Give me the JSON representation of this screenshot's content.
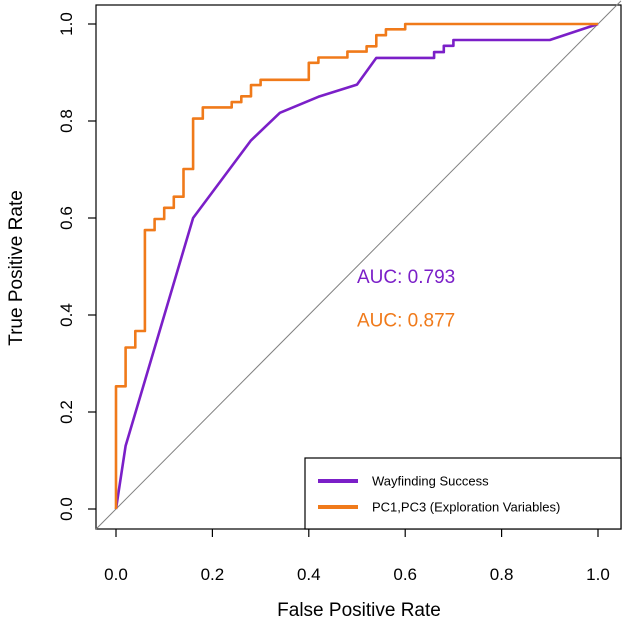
{
  "chart_data": {
    "type": "line",
    "title": "",
    "xlabel": "False Positive Rate",
    "ylabel": "True Positive Rate",
    "xlim": [
      0,
      1
    ],
    "ylim": [
      0,
      1
    ],
    "xticks": [
      "0.0",
      "0.2",
      "0.4",
      "0.6",
      "0.8",
      "1.0"
    ],
    "yticks": [
      "0.0",
      "0.2",
      "0.4",
      "0.6",
      "0.8",
      "1.0"
    ],
    "diagonal": {
      "color": "#808080"
    },
    "series": [
      {
        "name": "Wayfinding Success",
        "color": "#7B1FC8",
        "auc_label": "AUC: 0.793",
        "points": [
          [
            0.0,
            0.0
          ],
          [
            0.02,
            0.13
          ],
          [
            0.16,
            0.6
          ],
          [
            0.28,
            0.76
          ],
          [
            0.34,
            0.817
          ],
          [
            0.42,
            0.85
          ],
          [
            0.5,
            0.875
          ],
          [
            0.54,
            0.93
          ],
          [
            0.66,
            0.93
          ],
          [
            0.66,
            0.942
          ],
          [
            0.68,
            0.942
          ],
          [
            0.68,
            0.955
          ],
          [
            0.7,
            0.955
          ],
          [
            0.7,
            0.967
          ],
          [
            0.9,
            0.967
          ],
          [
            1.0,
            1.0
          ]
        ]
      },
      {
        "name": "PC1,PC3 (Exploration Variables)",
        "color": "#F07A1A",
        "auc_label": "AUC: 0.877",
        "points": [
          [
            0.0,
            0.0
          ],
          [
            0.0,
            0.253
          ],
          [
            0.02,
            0.253
          ],
          [
            0.02,
            0.333
          ],
          [
            0.04,
            0.333
          ],
          [
            0.04,
            0.367
          ],
          [
            0.06,
            0.367
          ],
          [
            0.06,
            0.575
          ],
          [
            0.08,
            0.575
          ],
          [
            0.08,
            0.598
          ],
          [
            0.1,
            0.598
          ],
          [
            0.1,
            0.621
          ],
          [
            0.12,
            0.621
          ],
          [
            0.12,
            0.644
          ],
          [
            0.14,
            0.644
          ],
          [
            0.14,
            0.701
          ],
          [
            0.16,
            0.701
          ],
          [
            0.16,
            0.805
          ],
          [
            0.18,
            0.805
          ],
          [
            0.18,
            0.828
          ],
          [
            0.24,
            0.828
          ],
          [
            0.24,
            0.839
          ],
          [
            0.26,
            0.839
          ],
          [
            0.26,
            0.851
          ],
          [
            0.28,
            0.851
          ],
          [
            0.28,
            0.874
          ],
          [
            0.3,
            0.874
          ],
          [
            0.3,
            0.885
          ],
          [
            0.4,
            0.885
          ],
          [
            0.4,
            0.92
          ],
          [
            0.42,
            0.92
          ],
          [
            0.42,
            0.931
          ],
          [
            0.48,
            0.931
          ],
          [
            0.48,
            0.943
          ],
          [
            0.52,
            0.943
          ],
          [
            0.52,
            0.954
          ],
          [
            0.54,
            0.954
          ],
          [
            0.54,
            0.977
          ],
          [
            0.56,
            0.977
          ],
          [
            0.56,
            0.989
          ],
          [
            0.6,
            0.989
          ],
          [
            0.6,
            1.0
          ],
          [
            1.0,
            1.0
          ]
        ]
      }
    ]
  }
}
